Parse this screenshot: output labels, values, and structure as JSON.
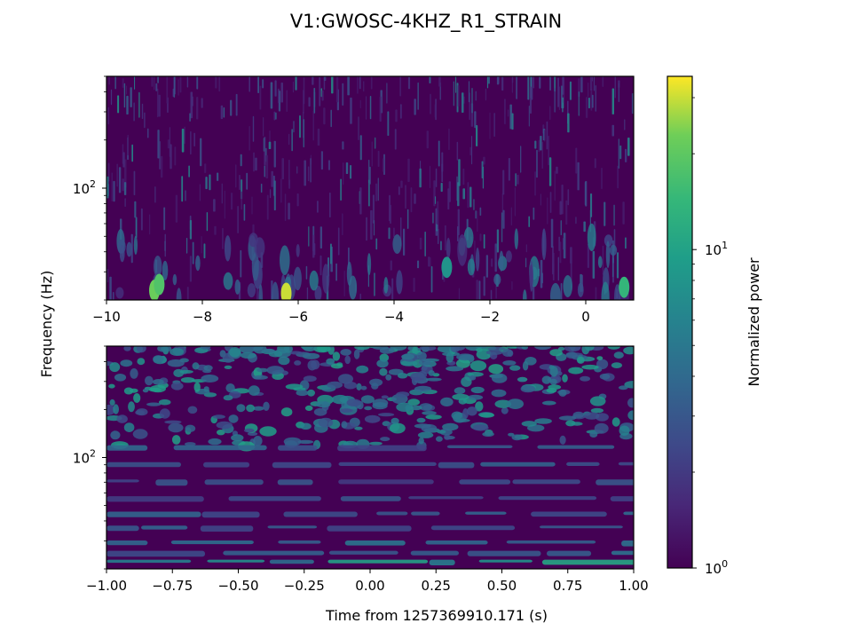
{
  "chart_data": {
    "type": "heatmap",
    "title": "V1:GWOSC-4KHZ_R1_STRAIN",
    "ylabel": "Frequency (Hz)",
    "colormap": "viridis",
    "colorbar": {
      "label": "Normalized power",
      "scale": "log",
      "range": [
        1,
        35
      ],
      "ticks": [
        {
          "base": "10",
          "exp": "0",
          "value": 1
        },
        {
          "base": "10",
          "exp": "1",
          "value": 10
        }
      ]
    },
    "panels": [
      {
        "name": "top",
        "xlim": [
          -10,
          1
        ],
        "yscale": "log",
        "ylim": [
          20,
          500
        ],
        "xticks": [
          {
            "value": -10,
            "label": "−10"
          },
          {
            "value": -8,
            "label": "−8"
          },
          {
            "value": -6,
            "label": "−6"
          },
          {
            "value": -4,
            "label": "−4"
          },
          {
            "value": -2,
            "label": "−2"
          },
          {
            "value": 0,
            "label": "0"
          }
        ],
        "yticks": [
          {
            "value": 100,
            "base": "10",
            "exp": "2"
          }
        ],
        "hotspots": [
          {
            "t": -9.0,
            "f": 23,
            "power": 22
          },
          {
            "t": -8.9,
            "f": 25,
            "power": 18
          },
          {
            "t": -6.25,
            "f": 22,
            "power": 30
          },
          {
            "t": -2.9,
            "f": 32,
            "power": 8
          },
          {
            "t": 0.8,
            "f": 24,
            "power": 14
          }
        ]
      },
      {
        "name": "bottom",
        "xlim": [
          -1,
          1
        ],
        "yscale": "log",
        "ylim": [
          20,
          500
        ],
        "xlabel": "Time from 1257369910.171 (s)",
        "xticks": [
          {
            "value": -1.0,
            "label": "−1.00"
          },
          {
            "value": -0.75,
            "label": "−0.75"
          },
          {
            "value": -0.5,
            "label": "−0.50"
          },
          {
            "value": -0.25,
            "label": "−0.25"
          },
          {
            "value": 0.0,
            "label": "0.00"
          },
          {
            "value": 0.25,
            "label": "0.25"
          },
          {
            "value": 0.5,
            "label": "0.50"
          },
          {
            "value": 0.75,
            "label": "0.75"
          },
          {
            "value": 1.0,
            "label": "1.00"
          }
        ],
        "yticks": [
          {
            "value": 100,
            "base": "10",
            "exp": "2"
          }
        ],
        "bands": [
          {
            "f": 22,
            "power": 12
          },
          {
            "f": 25,
            "power": 5
          },
          {
            "f": 29,
            "power": 7
          },
          {
            "f": 36,
            "power": 4
          },
          {
            "f": 44,
            "power": 4
          },
          {
            "f": 55,
            "power": 3
          },
          {
            "f": 70,
            "power": 3
          },
          {
            "f": 90,
            "power": 3.5
          },
          {
            "f": 115,
            "power": 4
          }
        ]
      }
    ]
  }
}
